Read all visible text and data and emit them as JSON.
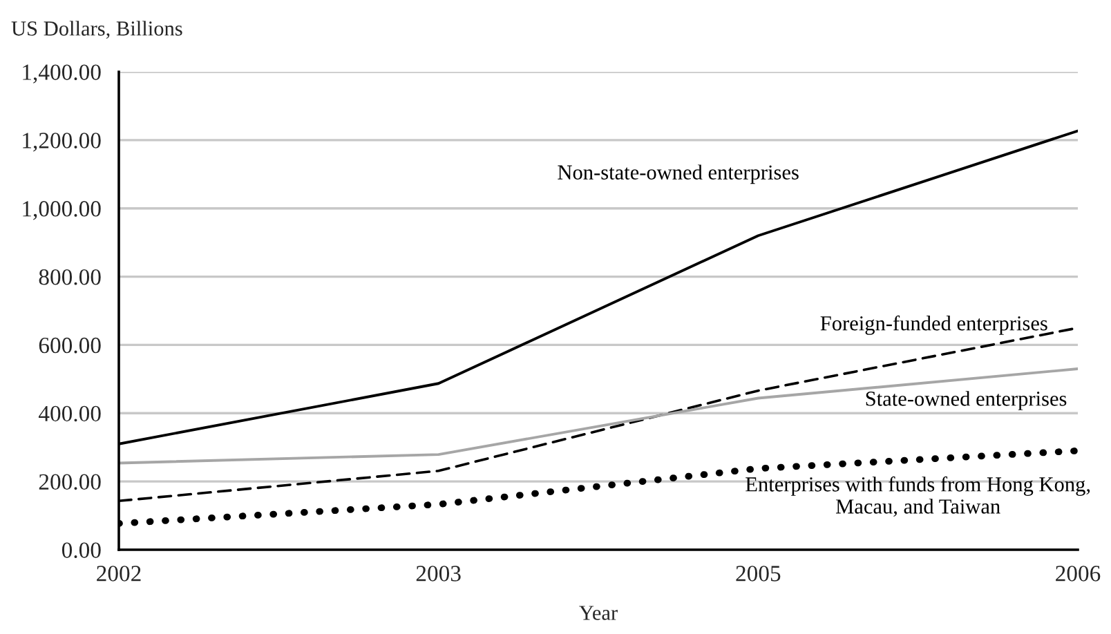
{
  "chart_data": {
    "type": "line",
    "ylabel": "US Dollars, Billions",
    "xlabel": "Year",
    "categories": [
      "2002",
      "2003",
      "2005",
      "2006"
    ],
    "series": [
      {
        "name": "Non-state-owned enterprises",
        "color": "#000000",
        "line_style": "solid",
        "values": [
          310,
          487,
          920,
          1227
        ]
      },
      {
        "name": "Foreign-funded enterprises",
        "color": "#000000",
        "line_style": "dashed",
        "values": [
          143,
          231,
          466,
          650
        ]
      },
      {
        "name": "State-owned enterprises",
        "color": "#a6a6a6",
        "line_style": "solid",
        "values": [
          254,
          279,
          444,
          530
        ]
      },
      {
        "name": "Enterprises with funds from Hong Kong,\nMacau, and Taiwan",
        "color": "#000000",
        "line_style": "dotted",
        "values": [
          77,
          133,
          238,
          290
        ]
      }
    ],
    "ylim": [
      0,
      1400
    ],
    "yticks": [
      {
        "value": 0,
        "label": "0.00"
      },
      {
        "value": 200,
        "label": "200.00"
      },
      {
        "value": 400,
        "label": "400.00"
      },
      {
        "value": 600,
        "label": "600.00"
      },
      {
        "value": 800,
        "label": "800.00"
      },
      {
        "value": 1000,
        "label": "1,000.00"
      },
      {
        "value": 1200,
        "label": "1,200.00"
      },
      {
        "value": 1400,
        "label": "1,400.00"
      }
    ],
    "grid": "y",
    "legend": false,
    "marker": "none"
  }
}
